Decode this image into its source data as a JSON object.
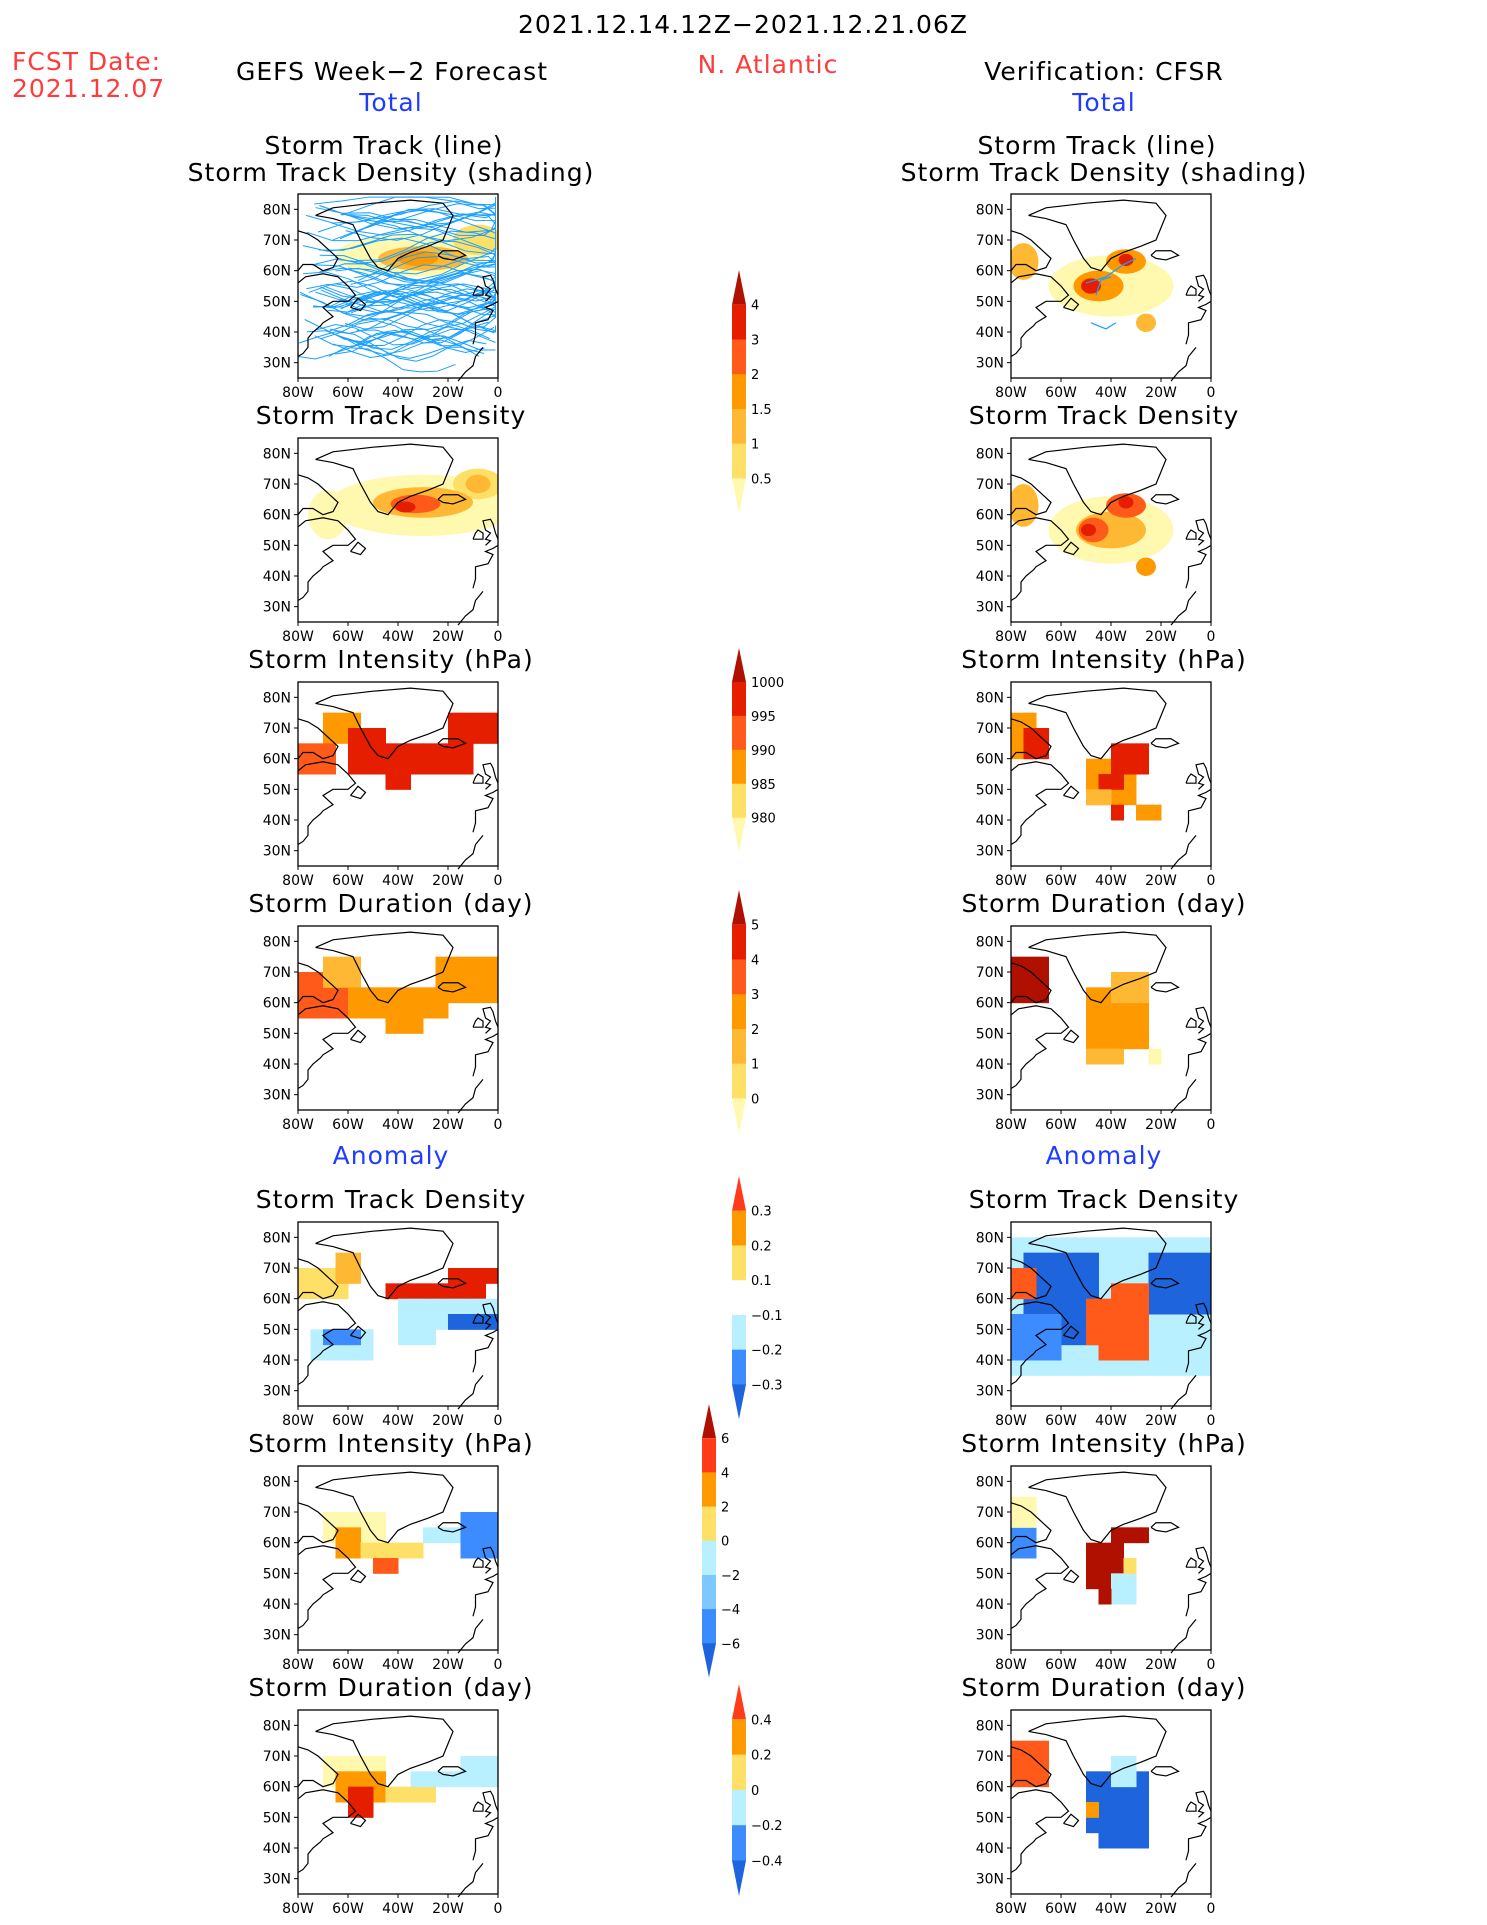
{
  "header": {
    "date_range": "2021.12.14.12Z−2021.12.21.06Z",
    "fcst_label": "FCST Date:",
    "fcst_date": "2021.12.07",
    "region": "N. Atlantic",
    "left_title": "GEFS Week−2 Forecast",
    "right_title": "Verification: CFSR",
    "total_label": "Total",
    "anomaly_label": "Anomaly"
  },
  "panel_titles": {
    "track_line": "Storm Track (line)",
    "track_shading": "Storm Track Density (shading)",
    "density": "Storm Track Density",
    "intensity": "Storm Intensity (hPa)",
    "duration": "Storm Duration (day)"
  },
  "axes": {
    "lat_labels": [
      "80N",
      "70N",
      "60N",
      "50N",
      "40N",
      "30N"
    ],
    "lon_labels": [
      "80W",
      "60W",
      "40W",
      "20W",
      "0"
    ]
  },
  "colorbars": {
    "density_total": [
      "4",
      "3",
      "2",
      "1.5",
      "1",
      "0.5"
    ],
    "intensity_total": [
      "1000",
      "995",
      "990",
      "985",
      "980"
    ],
    "duration_total": [
      "5",
      "4",
      "3",
      "2",
      "1",
      "0"
    ],
    "density_anom": [
      "0.3",
      "0.2",
      "0.1",
      "−0.1",
      "−0.2",
      "−0.3"
    ],
    "intensity_anom": [
      "6",
      "4",
      "2",
      "0",
      "−2",
      "−4",
      "−6"
    ],
    "duration_anom": [
      "0.4",
      "0.2",
      "0",
      "−0.2",
      "−0.4"
    ]
  },
  "colors": {
    "yellow_light": "#fff9b0",
    "yellow": "#ffe066",
    "orange_light": "#ffb833",
    "orange": "#ff9900",
    "orange_red": "#ff5a1a",
    "red": "#e61e00",
    "dark_red": "#b01000",
    "blue_light": "#b8f0ff",
    "blue_mid": "#7ec8ff",
    "blue": "#3c8cff",
    "blue_dark": "#1e64dc",
    "track_blue": "#1aa0ff",
    "title_red": "#ff3b3b",
    "title_blue": "#1f3cff"
  }
}
